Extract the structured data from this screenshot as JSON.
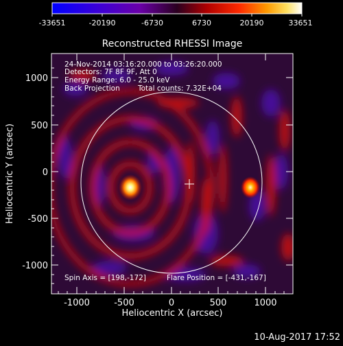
{
  "colorbar": {
    "ticks": [
      "-33651",
      "-20190",
      "-6730",
      "6730",
      "20190",
      "33651"
    ]
  },
  "plot": {
    "title": "Reconstructed RHESSI Image",
    "xlabel": "Heliocentric X (arcsec)",
    "ylabel": "Heliocentric Y (arcsec)",
    "xticks": [
      "-1000",
      "-500",
      "0",
      "500",
      "1000"
    ],
    "yticks": [
      "1000",
      "500",
      "0",
      "-500",
      "-1000"
    ]
  },
  "annotations": {
    "line1": "24-Nov-2014 03:16:20.000 to 03:26:20.000",
    "line2": "Detectors: 7F 8F 9F, Att 0",
    "line3": "Energy Range: 6.0 - 25.0 keV",
    "line4": "Back Projection",
    "line4b": "Total counts: 7.32E+04",
    "spin_axis": "Spin Axis = [198,-172]",
    "flare_position": "Flare Position = [-431,-167]"
  },
  "timestamp": "10-Aug-2017 17:52"
}
